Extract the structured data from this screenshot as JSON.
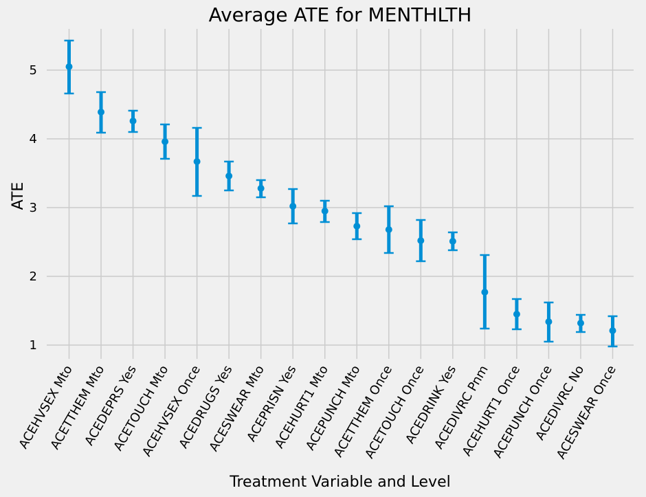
{
  "chart_data": {
    "type": "scatter",
    "title": "Average ATE for MENTHLTH",
    "xlabel": "Treatment Variable and Level",
    "ylabel": "ATE",
    "ylim": [
      0.8,
      5.6
    ],
    "yticks": [
      1,
      2,
      3,
      4,
      5
    ],
    "grid": true,
    "colors": {
      "marker": "#008fd5",
      "grid": "#cbcbcb",
      "background": "#f0f0f0"
    },
    "categories": [
      "ACEHVSEX Mto",
      "ACETTHEM Mto",
      "ACEDEPRS Yes",
      "ACETOUCH Mto",
      "ACEHVSEX Once",
      "ACEDRUGS Yes",
      "ACESWEAR Mto",
      "ACEPRISN Yes",
      "ACEHURT1 Mto",
      "ACEPUNCH Mto",
      "ACETTHEM Once",
      "ACETOUCH Once",
      "ACEDRINK Yes",
      "ACEDIVRC Pnm",
      "ACEHURT1 Once",
      "ACEPUNCH Once",
      "ACEDIVRC No",
      "ACESWEAR Once"
    ],
    "values": [
      5.05,
      4.39,
      4.26,
      3.96,
      3.67,
      3.46,
      3.28,
      3.02,
      2.95,
      2.73,
      2.68,
      2.52,
      2.51,
      1.77,
      1.45,
      1.34,
      1.32,
      1.21
    ],
    "lower": [
      4.66,
      4.09,
      4.1,
      3.71,
      3.17,
      3.25,
      3.15,
      2.77,
      2.79,
      2.54,
      2.34,
      2.22,
      2.38,
      1.24,
      1.23,
      1.05,
      1.19,
      0.98
    ],
    "upper": [
      5.43,
      4.68,
      4.41,
      4.21,
      4.16,
      3.67,
      3.4,
      3.27,
      3.1,
      2.92,
      3.02,
      2.82,
      2.64,
      2.31,
      1.67,
      1.62,
      1.44,
      1.42
    ]
  }
}
